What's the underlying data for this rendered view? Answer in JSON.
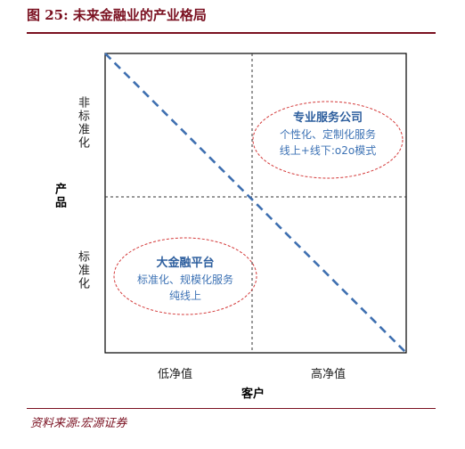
{
  "figure": {
    "title": "图 25:  未来金融业的产业格局",
    "source": "资料来源:宏源证券"
  },
  "diagram": {
    "y_axis_label": "产品",
    "x_axis_label": "客户",
    "y_ticks": [
      "非标准化",
      "标准化"
    ],
    "x_ticks": [
      "低净值",
      "高净值"
    ],
    "quadrant_top_right": {
      "title": "专业服务公司",
      "line1": "个性化、定制化服务",
      "line2": "线上+线下:o2o模式"
    },
    "quadrant_bottom_left": {
      "title": "大金融平台",
      "line1": "标准化、规模化服务",
      "line2": "纯线上"
    }
  },
  "colors": {
    "title_accent": "#7a1020",
    "diagonal": "#3e6fb0",
    "ellipse": "#d43a3a",
    "box_text": "#2e5f9e"
  }
}
